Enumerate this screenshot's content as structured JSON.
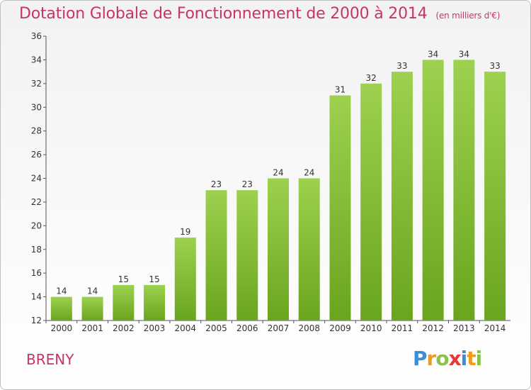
{
  "title": "Dotation Globale de Fonctionnement de 2000 à 2014",
  "unit": "(en milliers d'€)",
  "commune": "BRENY",
  "logo": {
    "letters": [
      {
        "ch": "P",
        "color": "#3a8fd6"
      },
      {
        "ch": "r",
        "color": "#f29a1f"
      },
      {
        "ch": "o",
        "color": "#8bc34a"
      },
      {
        "ch": "x",
        "color": "#e53935"
      },
      {
        "ch": "i",
        "color": "#3a8fd6"
      },
      {
        "ch": "t",
        "color": "#f29a1f"
      },
      {
        "ch": "i",
        "color": "#8bc34a"
      }
    ]
  },
  "chart_data": {
    "type": "bar",
    "categories": [
      "2000",
      "2001",
      "2002",
      "2003",
      "2004",
      "2005",
      "2006",
      "2007",
      "2008",
      "2009",
      "2010",
      "2011",
      "2012",
      "2013",
      "2014"
    ],
    "values": [
      14,
      14,
      15,
      15,
      19,
      23,
      23,
      24,
      24,
      31,
      32,
      33,
      34,
      34,
      33
    ],
    "ylim": [
      12,
      36
    ],
    "yticks": [
      12,
      14,
      16,
      18,
      20,
      22,
      24,
      26,
      28,
      30,
      32,
      34,
      36
    ],
    "grid": false,
    "bar_color_top": "#9dd14f",
    "bar_color_bottom": "#6aa51e"
  }
}
